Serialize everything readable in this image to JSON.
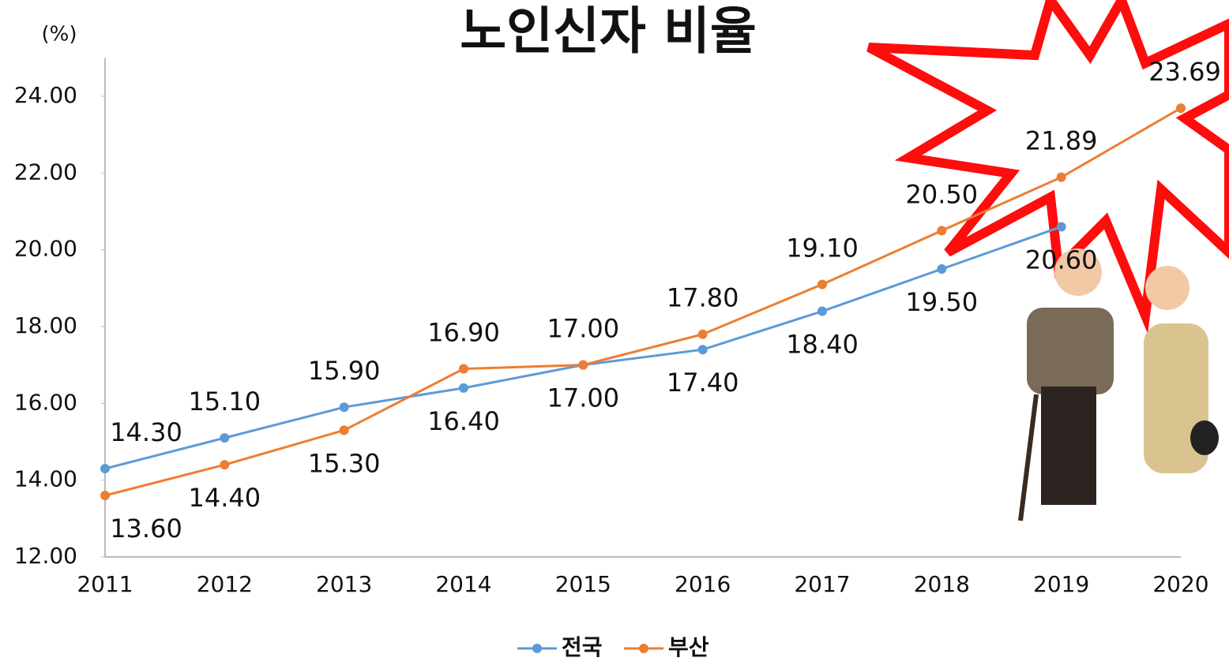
{
  "chart_data": {
    "type": "line",
    "title": "노인신자 비율",
    "y_label": "(%)",
    "categories": [
      "2011",
      "2012",
      "2013",
      "2014",
      "2015",
      "2016",
      "2017",
      "2018",
      "2019",
      "2020"
    ],
    "series": [
      {
        "name": "전국",
        "color": "#5b9bd5",
        "values": [
          14.3,
          15.1,
          15.9,
          16.4,
          17.0,
          17.4,
          18.4,
          19.5,
          20.6,
          null
        ],
        "value_labels": [
          "14.30",
          "15.10",
          "15.90",
          "16.40",
          "17.00",
          "17.40",
          "18.40",
          "19.50",
          "20.60",
          null
        ]
      },
      {
        "name": "부산",
        "color": "#ed7d31",
        "values": [
          13.6,
          14.4,
          15.3,
          16.9,
          17.0,
          17.8,
          19.1,
          20.5,
          21.89,
          23.69
        ],
        "value_labels": [
          "13.60",
          "14.40",
          "15.30",
          "16.90",
          "17.00",
          "17.80",
          "19.10",
          "20.50",
          "21.89",
          "23.69"
        ]
      }
    ],
    "ylim": [
      12,
      25
    ],
    "yticks": [
      {
        "value": 12,
        "label": "12.00"
      },
      {
        "value": 14,
        "label": "14.00"
      },
      {
        "value": 16,
        "label": "16.00"
      },
      {
        "value": 18,
        "label": "18.00"
      },
      {
        "value": 20,
        "label": "20.00"
      },
      {
        "value": 22,
        "label": "22.00"
      },
      {
        "value": 24,
        "label": "24.00"
      }
    ],
    "legend": "bottom"
  }
}
